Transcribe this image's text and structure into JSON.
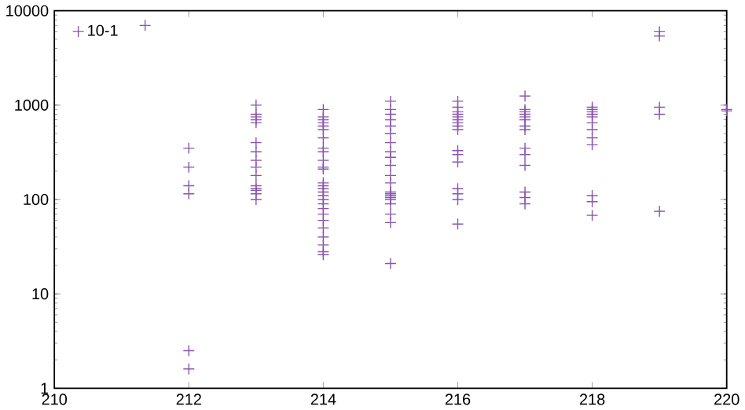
{
  "chart_data": {
    "type": "scatter",
    "log": "y",
    "marker": "cross",
    "legend": "top left",
    "grid": false,
    "xlim": [
      210,
      220
    ],
    "xticks": [
      210,
      212,
      214,
      216,
      218,
      220
    ],
    "ylim": [
      1,
      10000
    ],
    "yticks": [
      1,
      10,
      100,
      1000,
      10000
    ],
    "series": [
      {
        "name": "10-1",
        "color": "#8a55ad",
        "x": [
          211.35,
          212,
          212,
          212,
          212,
          212,
          212,
          213,
          213,
          213,
          213,
          213,
          213,
          213,
          213,
          213,
          213,
          213,
          213,
          213,
          213,
          213,
          214,
          214,
          214,
          214,
          214,
          214,
          214,
          214,
          214,
          214,
          214,
          214,
          214,
          214,
          214,
          214,
          214,
          214,
          214,
          214,
          214,
          214,
          214,
          214,
          214,
          214,
          214,
          215,
          215,
          215,
          215,
          215,
          215,
          215,
          215,
          215,
          215,
          215,
          215,
          215,
          215,
          215,
          215,
          215,
          215,
          215,
          215,
          215,
          216,
          216,
          216,
          216,
          216,
          216,
          216,
          216,
          216,
          216,
          216,
          216,
          216,
          216,
          216,
          216,
          217,
          217,
          217,
          217,
          217,
          217,
          217,
          217,
          217,
          217,
          217,
          217,
          217,
          217,
          218,
          218,
          218,
          218,
          218,
          218,
          218,
          218,
          218,
          218,
          218,
          218,
          219,
          219,
          219,
          219,
          219,
          220,
          220
        ],
        "values": [
          7000,
          350,
          220,
          140,
          115,
          2.5,
          1.6,
          1000,
          800,
          750,
          700,
          650,
          400,
          320,
          260,
          220,
          180,
          140,
          130,
          125,
          115,
          100,
          900,
          750,
          700,
          650,
          600,
          550,
          450,
          350,
          320,
          260,
          220,
          210,
          150,
          140,
          130,
          120,
          110,
          100,
          90,
          80,
          70,
          60,
          50,
          40,
          33,
          28,
          26,
          1100,
          900,
          800,
          700,
          600,
          500,
          400,
          320,
          280,
          230,
          180,
          150,
          120,
          115,
          110,
          105,
          100,
          90,
          70,
          57,
          21,
          1100,
          950,
          850,
          800,
          750,
          700,
          650,
          600,
          550,
          330,
          300,
          250,
          130,
          115,
          100,
          55,
          1250,
          900,
          850,
          800,
          750,
          700,
          600,
          550,
          350,
          300,
          230,
          120,
          105,
          90,
          950,
          900,
          850,
          800,
          750,
          650,
          550,
          450,
          380,
          110,
          95,
          68,
          6000,
          5400,
          950,
          800,
          75,
          900,
          870
        ]
      }
    ]
  }
}
